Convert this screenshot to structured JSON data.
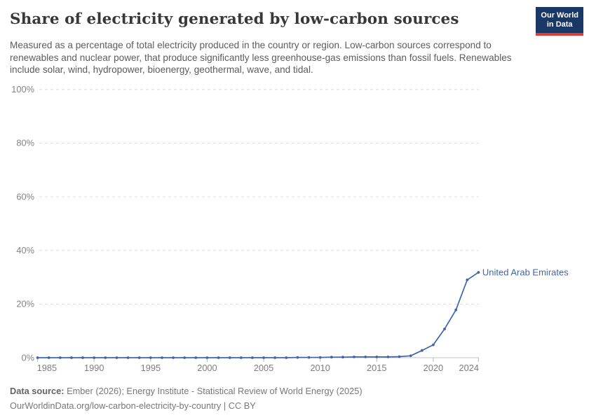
{
  "header": {
    "title": "Share of electricity generated by low-carbon sources",
    "subtitle": "Measured as a percentage of total electricity produced in the country or region. Low-carbon sources correspond to renewables and nuclear power, that produce significantly less greenhouse-gas emissions than fossil fuels. Renewables include solar, wind, hydropower, bioenergy, geothermal, wave, and tidal.",
    "logo": {
      "line1": "Our World",
      "line2": "in Data",
      "bg_color": "#1a3866",
      "accent_color": "#dc3c34"
    }
  },
  "chart_data": {
    "type": "line",
    "title": "Share of electricity generated by low-carbon sources",
    "xlabel": "",
    "ylabel": "",
    "xlim": [
      1985,
      2024
    ],
    "ylim": [
      0,
      100
    ],
    "grid": "horizontal-dashed",
    "legend_position": "end-of-line-label",
    "y_ticks": [
      {
        "label": "0%",
        "value": 0
      },
      {
        "label": "20%",
        "value": 20
      },
      {
        "label": "40%",
        "value": 40
      },
      {
        "label": "60%",
        "value": 60
      },
      {
        "label": "80%",
        "value": 80
      },
      {
        "label": "100%",
        "value": 100
      }
    ],
    "x_ticks": [
      {
        "label": "1985",
        "value": 1985
      },
      {
        "label": "1990",
        "value": 1990
      },
      {
        "label": "1995",
        "value": 1995
      },
      {
        "label": "2000",
        "value": 2000
      },
      {
        "label": "2005",
        "value": 2005
      },
      {
        "label": "2010",
        "value": 2010
      },
      {
        "label": "2015",
        "value": 2015
      },
      {
        "label": "2020",
        "value": 2020
      },
      {
        "label": "2024",
        "value": 2024
      }
    ],
    "series": [
      {
        "name": "United Arab Emirates",
        "color": "#4166a6",
        "years": [
          1985,
          1986,
          1987,
          1988,
          1989,
          1990,
          1991,
          1992,
          1993,
          1994,
          1995,
          1996,
          1997,
          1998,
          1999,
          2000,
          2001,
          2002,
          2003,
          2004,
          2005,
          2006,
          2007,
          2008,
          2009,
          2010,
          2011,
          2012,
          2013,
          2014,
          2015,
          2016,
          2017,
          2018,
          2019,
          2020,
          2021,
          2022,
          2023,
          2024
        ],
        "values": [
          0,
          0,
          0,
          0,
          0,
          0,
          0,
          0,
          0,
          0,
          0,
          0,
          0,
          0,
          0,
          0,
          0,
          0,
          0,
          0,
          0,
          0,
          0,
          0.1,
          0.1,
          0.1,
          0.2,
          0.2,
          0.3,
          0.3,
          0.3,
          0.3,
          0.4,
          0.7,
          2.7,
          4.8,
          10.7,
          17.8,
          29,
          31.8
        ]
      }
    ],
    "colors": {
      "gridline": "#dedede",
      "axis_line": "#c3c3c3",
      "tick_label": "#7d7d7d"
    }
  },
  "footer": {
    "datasource_label": "Data source:",
    "datasource_text": " Ember (2026); Energy Institute - Statistical Review of World Energy (2025)",
    "link_text": "OurWorldinData.org/low-carbon-electricity-by-country | CC BY"
  }
}
